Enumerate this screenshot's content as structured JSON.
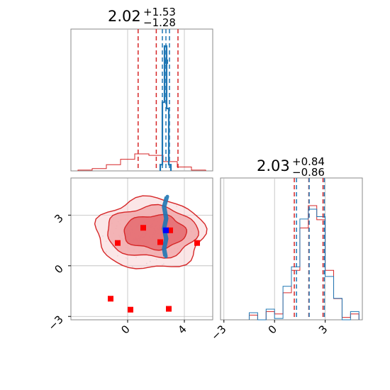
{
  "chart_data": [
    {
      "type": "histogram",
      "panel": "x-marginal",
      "title": {
        "value": "2.02",
        "plus": "+1.53",
        "minus": "−1.28"
      },
      "xlim": [
        -4,
        6
      ],
      "grid": true,
      "series": [
        {
          "color": "#d62728",
          "bin_edges": [
            -3.5,
            -2.5,
            -1.5,
            -0.5,
            0.5,
            1.5,
            2.5,
            3.5,
            4.5,
            5.5
          ],
          "heights": [
            0.01,
            0.03,
            0.08,
            0.15,
            0.22,
            0.2,
            0.12,
            0.05,
            0.01
          ],
          "quantile_lines": [
            0.74,
            2.02,
            3.55
          ]
        },
        {
          "color": "#1f77b4",
          "bin_edges": [
            2.3,
            2.45,
            2.6,
            2.75,
            2.9,
            3.05
          ],
          "heights": [
            0.05,
            0.55,
            1.0,
            0.5,
            0.05
          ],
          "quantile_lines": [
            2.45,
            2.7,
            2.95
          ]
        }
      ]
    },
    {
      "type": "contour",
      "panel": "joint",
      "xlim": [
        -4,
        6
      ],
      "ylim": [
        -3.2,
        5.2
      ],
      "xticks": [
        "0",
        "4"
      ],
      "yticks": [
        "−3",
        "0",
        "3"
      ],
      "grid": true,
      "red_contour_levels": [
        {
          "cx": 1.9,
          "cy": 2.0,
          "rx": 2.2,
          "ry": 1.0,
          "fill": "#e46a6e",
          "opacity": 0.85
        },
        {
          "cx": 1.7,
          "cy": 2.0,
          "rx": 3.2,
          "ry": 1.5,
          "fill": "#f1a9ab",
          "opacity": 0.85
        },
        {
          "cx": 1.6,
          "cy": 1.9,
          "rx": 3.8,
          "ry": 2.1,
          "fill": "#f8d2d3",
          "opacity": 0.55
        }
      ],
      "red_markers": [
        [
          -0.7,
          1.35
        ],
        [
          1.1,
          2.25
        ],
        [
          2.3,
          1.4
        ],
        [
          3.0,
          2.1
        ],
        [
          4.9,
          1.35
        ],
        [
          -1.2,
          -1.95
        ],
        [
          0.2,
          -2.6
        ],
        [
          2.9,
          -2.55
        ]
      ],
      "blue_marker": [
        2.7,
        2.1
      ],
      "blue_track": [
        [
          2.8,
          4.1
        ],
        [
          2.6,
          3.5
        ],
        [
          2.75,
          2.8
        ],
        [
          2.6,
          2.2
        ],
        [
          2.75,
          1.6
        ],
        [
          2.6,
          1.0
        ],
        [
          2.7,
          0.55
        ]
      ]
    },
    {
      "type": "histogram",
      "panel": "y-marginal",
      "title": {
        "value": "2.03",
        "plus": "+0.84",
        "minus": "−0.86"
      },
      "xlim": [
        -3.2,
        5.2
      ],
      "xticks": [
        "−3",
        "0",
        "3"
      ],
      "grid": true,
      "series": [
        {
          "color": "#d62728",
          "bin_edges": [
            -1.5,
            -1.0,
            -0.5,
            0.0,
            0.5,
            1.0,
            1.5,
            2.0,
            2.5,
            3.0,
            3.5,
            4.0,
            4.5,
            5.0
          ],
          "heights": [
            0.01,
            0.02,
            0.04,
            0.08,
            0.2,
            0.45,
            0.75,
            1.0,
            0.82,
            0.45,
            0.15,
            0.05,
            0.02
          ],
          "quantile_lines": [
            1.17,
            2.03,
            2.87
          ]
        },
        {
          "color": "#1f77b4",
          "bin_edges": [
            -1.5,
            -1.0,
            -0.5,
            0.0,
            0.5,
            1.0,
            1.5,
            2.0,
            2.5,
            3.0,
            3.5,
            4.0,
            4.5,
            5.0
          ],
          "heights": [
            0.0,
            0.01,
            0.03,
            0.07,
            0.22,
            0.5,
            0.78,
            0.98,
            0.8,
            0.42,
            0.12,
            0.04,
            0.01
          ],
          "quantile_lines": [
            1.3,
            2.05,
            2.95
          ]
        }
      ]
    }
  ]
}
